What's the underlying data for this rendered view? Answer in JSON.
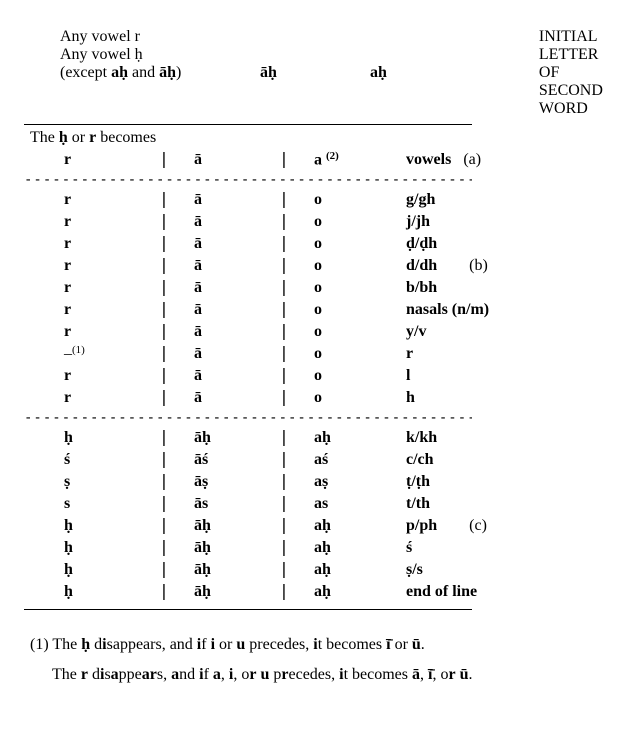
{
  "header": {
    "left_lines": [
      "Any vowel r",
      "Any vowel ḥ",
      "(except aḥ and āḥ)"
    ],
    "col_headings": [
      "āḥ",
      "aḥ"
    ],
    "right_block": [
      "INITIAL",
      "LETTER OF",
      "SECOND",
      "WORD"
    ]
  },
  "section_title_pre": "The ",
  "section_title_b1": "ḥ",
  "section_title_mid": " or ",
  "section_title_b2": "r",
  "section_title_post": " becomes",
  "groupA": {
    "row": {
      "c1": "r",
      "c2": "ā",
      "c3": "a",
      "c3_sup": "(2)",
      "c4b": "vowels",
      "c4p": "   (a)"
    }
  },
  "groupB": {
    "rows": [
      {
        "c1": "r",
        "c2": "ā",
        "c3": "o",
        "c4b": "g/gh",
        "c4p": ""
      },
      {
        "c1": "r",
        "c2": "ā",
        "c3": "o",
        "c4b": "j/jh",
        "c4p": ""
      },
      {
        "c1": "r",
        "c2": "ā",
        "c3": "o",
        "c4b": "ḍ/ḍh",
        "c4p": ""
      },
      {
        "c1": "r",
        "c2": "ā",
        "c3": "o",
        "c4b": "d/dh",
        "c4p": "        (b)"
      },
      {
        "c1": "r",
        "c2": "ā",
        "c3": "o",
        "c4b": "b/bh",
        "c4p": ""
      },
      {
        "c1": "r",
        "c2": "ā",
        "c3": "o",
        "c4b": "nasals (n/m)",
        "c4p": ""
      },
      {
        "c1": "r",
        "c2": "ā",
        "c3": "o",
        "c4b": "y/v",
        "c4p": ""
      },
      {
        "c1": "–",
        "c1_sup": "(1)",
        "c2": "ā",
        "c3": "o",
        "c4b": "r",
        "c4p": ""
      },
      {
        "c1": "r",
        "c2": "ā",
        "c3": "o",
        "c4b": "l",
        "c4p": ""
      },
      {
        "c1": "r",
        "c2": "ā",
        "c3": "o",
        "c4b": "h",
        "c4p": ""
      }
    ]
  },
  "groupC": {
    "rows": [
      {
        "c1": "ḥ",
        "c2": "āḥ",
        "c3": "aḥ",
        "c4b": "k/kh",
        "c4p": ""
      },
      {
        "c1": "ś",
        "c2": "āś",
        "c3": "aś",
        "c4b": "c/ch",
        "c4p": ""
      },
      {
        "c1": "ṣ",
        "c2": "āṣ",
        "c3": "aṣ",
        "c4b": "ṭ/ṭh",
        "c4p": ""
      },
      {
        "c1": "s",
        "c2": "ās",
        "c3": "as",
        "c4b": "t/th",
        "c4p": ""
      },
      {
        "c1": "ḥ",
        "c2": "āḥ",
        "c3": "aḥ",
        "c4b": "p/ph",
        "c4p": "        (c)"
      },
      {
        "c1": "ḥ",
        "c2": "āḥ",
        "c3": "aḥ",
        "c4b": "ś",
        "c4p": ""
      },
      {
        "c1": "ḥ",
        "c2": "āḥ",
        "c3": "aḥ",
        "c4b": "ṣ/s",
        "c4p": ""
      },
      {
        "c1": "ḥ",
        "c2": "āḥ",
        "c3": "aḥ",
        "c4b": "end of line",
        "c4p": ""
      }
    ]
  },
  "sep_char": "|",
  "dash_line": "----------------------------------------------------------------",
  "footnotes": {
    "n1_a": "(1)  The ḥ disappears, and if i or u precedes, it becomes ī̄ or ū.",
    "n1_b": "The r disappears, and if a, i, or u precedes, it becomes ā, ī̄, or ū."
  },
  "boldmap_n1a": [
    "ḥ",
    "i",
    "u",
    "ī̄",
    "ū"
  ],
  "boldmap_n1b": [
    "r",
    "a",
    "i",
    "u",
    "ā",
    "ī̄",
    "ū"
  ]
}
